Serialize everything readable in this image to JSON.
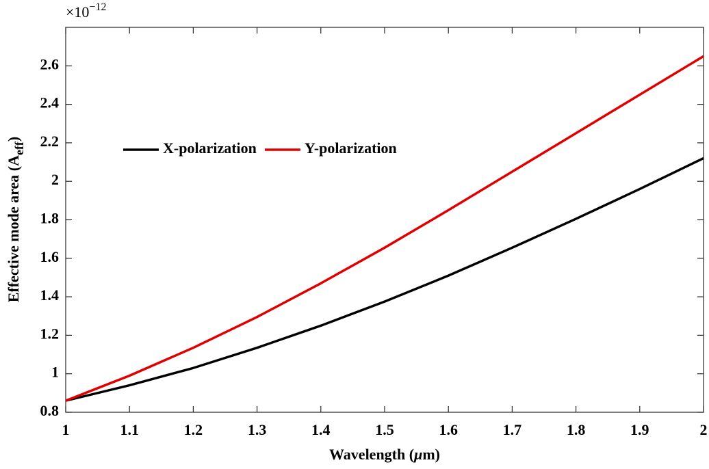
{
  "chart_data": {
    "type": "line",
    "x_label": {
      "text": "Wavelength (",
      "symbol": "μ",
      "unit": "m)"
    },
    "y_label": {
      "text": "Effective mode area (A",
      "subscript": "eff",
      "close": ")"
    },
    "axis_multiplier": {
      "base": "×10",
      "exponent": "−12"
    },
    "x": [
      1.0,
      1.1,
      1.2,
      1.3,
      1.4,
      1.5,
      1.6,
      1.7,
      1.8,
      1.9,
      2.0
    ],
    "series": [
      {
        "name": "X-polarization",
        "color": "#000000",
        "values": [
          0.86,
          0.94,
          1.03,
          1.135,
          1.25,
          1.375,
          1.51,
          1.655,
          1.805,
          1.96,
          2.12
        ]
      },
      {
        "name": "Y-polarization",
        "color": "#e00000",
        "values": [
          0.86,
          0.99,
          1.135,
          1.295,
          1.47,
          1.655,
          1.85,
          2.05,
          2.25,
          2.45,
          2.65
        ]
      }
    ],
    "xlim": [
      1,
      2
    ],
    "xticks": [
      1,
      1.1,
      1.2,
      1.3,
      1.4,
      1.5,
      1.6,
      1.7,
      1.8,
      1.9,
      2
    ],
    "ylim": [
      0.8,
      2.8
    ],
    "yticks": [
      0.8,
      1,
      1.2,
      1.4,
      1.6,
      1.8,
      2,
      2.2,
      2.4,
      2.6
    ],
    "grid": false,
    "legend": "upper-left"
  }
}
